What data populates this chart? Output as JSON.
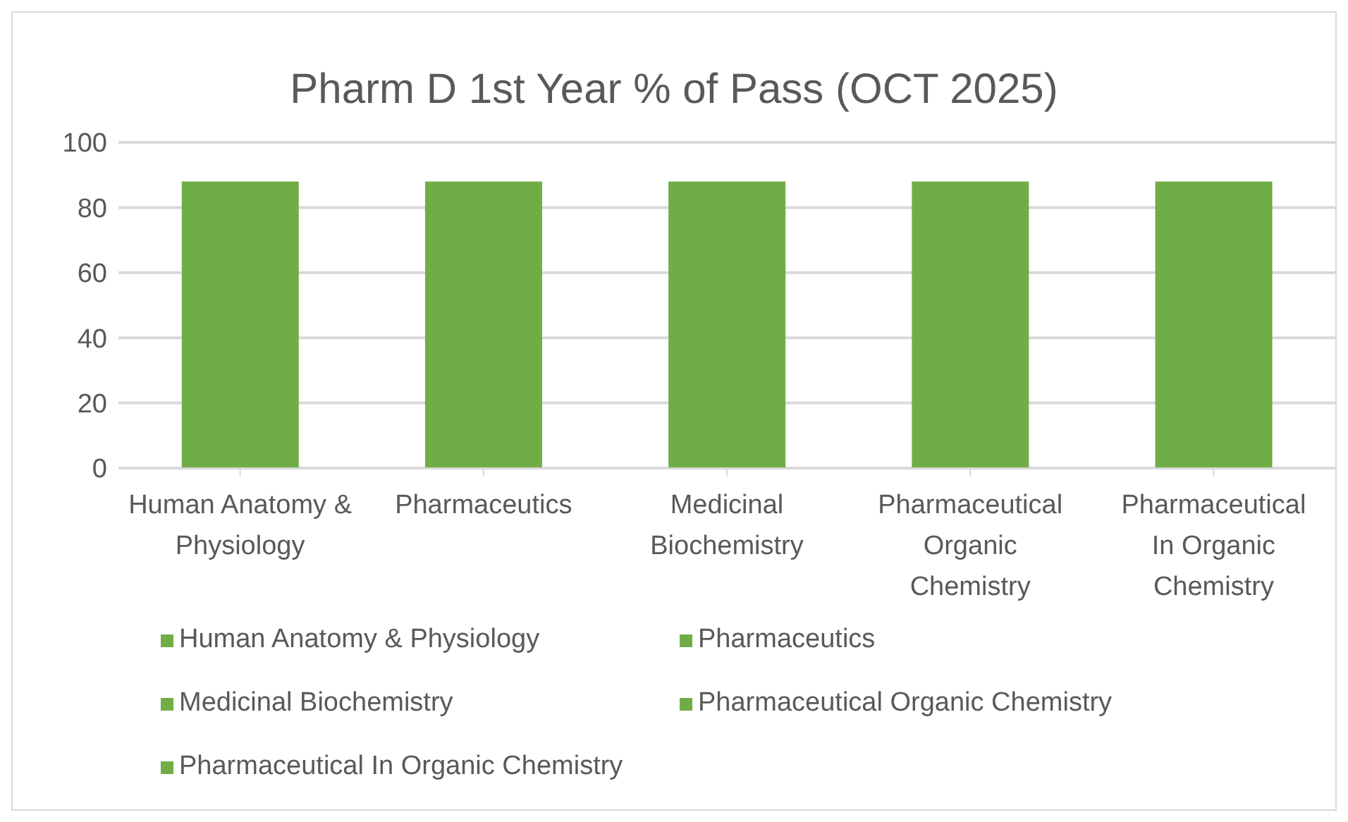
{
  "chart_data": {
    "type": "bar",
    "title": "Pharm D 1st Year % of Pass (OCT 2025)",
    "categories": [
      "Human Anatomy & Physiology",
      "Pharmaceutics",
      "Medicinal Biochemistry",
      "Pharmaceutical Organic Chemistry",
      "Pharmaceutical In Organic Chemistry"
    ],
    "stacked": true,
    "series": [
      {
        "name": "Human Anatomy & Physiology",
        "color": "#70ad47",
        "values": [
          88,
          null,
          null,
          null,
          null
        ]
      },
      {
        "name": "Pharmaceutics",
        "color": "#70ad47",
        "values": [
          null,
          88,
          null,
          null,
          null
        ]
      },
      {
        "name": "Medicinal Biochemistry",
        "color": "#70ad47",
        "values": [
          null,
          null,
          88,
          null,
          null
        ]
      },
      {
        "name": "Pharmaceutical Organic Chemistry",
        "color": "#70ad47",
        "values": [
          null,
          null,
          null,
          88,
          null
        ]
      },
      {
        "name": "Pharmaceutical In Organic Chemistry",
        "color": "#70ad47",
        "values": [
          null,
          null,
          null,
          null,
          88
        ]
      }
    ],
    "ylim": [
      0,
      100
    ],
    "yticks": [
      0,
      20,
      40,
      60,
      80,
      100
    ],
    "grid": "y",
    "legend": "bottom"
  }
}
